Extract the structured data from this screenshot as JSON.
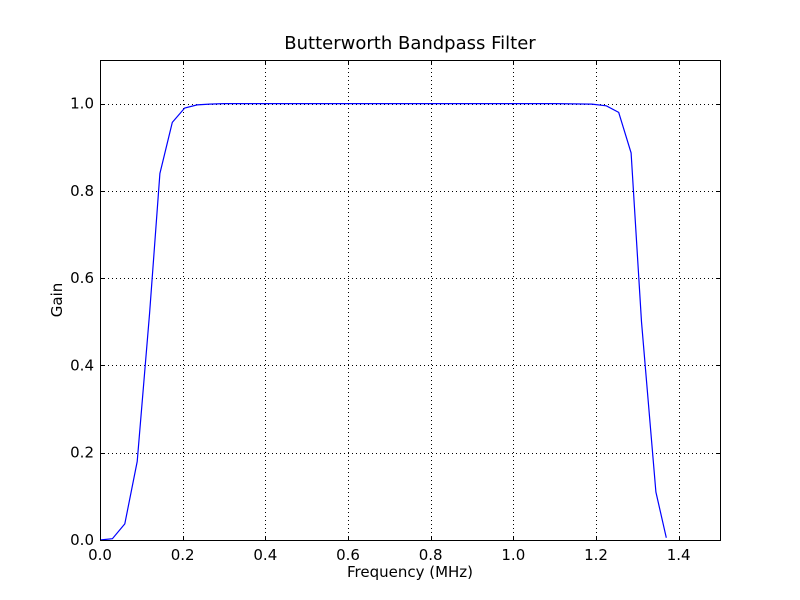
{
  "chart_data": {
    "type": "line",
    "title": "Butterworth Bandpass Filter",
    "xlabel": "Frequency (MHz)",
    "ylabel": "Gain",
    "xlim": [
      0.0,
      1.5
    ],
    "ylim": [
      0.0,
      1.1
    ],
    "xticks": [
      0.0,
      0.2,
      0.4,
      0.6,
      0.8,
      1.0,
      1.2,
      1.4
    ],
    "xtick_labels": [
      "0.0",
      "0.2",
      "0.4",
      "0.6",
      "0.8",
      "1.0",
      "1.2",
      "1.4"
    ],
    "yticks": [
      0.0,
      0.2,
      0.4,
      0.6,
      0.8,
      1.0
    ],
    "ytick_labels": [
      "0.0",
      "0.2",
      "0.4",
      "0.6",
      "0.8",
      "1.0"
    ],
    "grid": true,
    "line_color": "#0000ff",
    "series": [
      {
        "x": [
          0.0,
          0.03,
          0.06,
          0.09,
          0.12,
          0.145,
          0.175,
          0.205,
          0.235,
          0.265,
          0.3,
          0.4,
          0.5,
          0.6,
          0.7,
          0.8,
          0.9,
          1.0,
          1.1,
          1.19,
          1.225,
          1.255,
          1.285,
          1.31,
          1.345,
          1.37
        ],
        "y": [
          0.0,
          0.003,
          0.037,
          0.18,
          0.52,
          0.84,
          0.957,
          0.99,
          0.997,
          0.999,
          1.0,
          1.0,
          1.0,
          1.0,
          1.0,
          1.0,
          1.0,
          1.0,
          1.0,
          0.999,
          0.995,
          0.98,
          0.887,
          0.5,
          0.11,
          0.005
        ]
      }
    ]
  }
}
